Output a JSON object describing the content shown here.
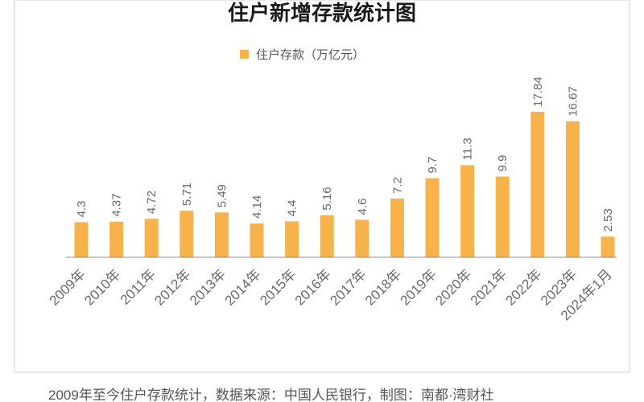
{
  "chart_data": {
    "type": "bar",
    "title": "住户新增存款统计图",
    "categories": [
      "2009年",
      "2010年",
      "2011年",
      "2012年",
      "2013年",
      "2014年",
      "2015年",
      "2016年",
      "2017年",
      "2018年",
      "2019年",
      "2020年",
      "2021年",
      "2022年",
      "2023年",
      "2024年1月"
    ],
    "series": [
      {
        "name": "住户存款（万亿元）",
        "values": [
          4.3,
          4.37,
          4.72,
          5.71,
          5.49,
          4.14,
          4.4,
          5.16,
          4.6,
          7.2,
          9.7,
          11.3,
          9.9,
          17.84,
          16.67,
          2.53
        ],
        "labels": [
          "4.3",
          "4.37",
          "4.72",
          "5.71",
          "5.49",
          "4.14",
          "4.4",
          "5.16",
          "4.6",
          "7.2",
          "9.7",
          "11.3",
          "9.9",
          "17.84",
          "16.67",
          "2.53"
        ]
      }
    ],
    "ylim": [
      0,
      18
    ],
    "grid": false,
    "legend_position": "top-left",
    "colors": {
      "bar": "#F7B24A",
      "axis": "#8f8f8f",
      "frame": "#d0d0d0"
    },
    "caption": "2009年至今住户存款统计，数据来源：中国人民银行，制图：南都·湾财社"
  }
}
